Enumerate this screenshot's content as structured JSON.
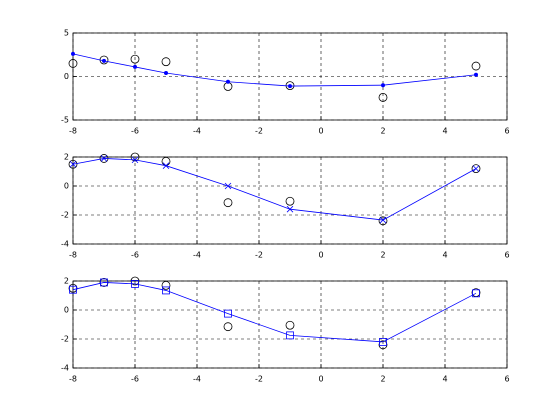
{
  "chart_data": [
    {
      "type": "line",
      "x": [
        -8,
        -7,
        -6,
        -5,
        -3,
        -1,
        2,
        5
      ],
      "xlim": [
        -8,
        6
      ],
      "xticks": [
        -8,
        -6,
        -4,
        -2,
        0,
        2,
        4,
        6
      ],
      "ylim": [
        -5,
        5
      ],
      "yticks": [
        -5,
        0,
        5
      ],
      "grid": true,
      "series": [
        {
          "color": "#000000",
          "marker": "o",
          "line": false,
          "values": [
            1.5,
            1.9,
            2.0,
            1.7,
            -1.15,
            -1.05,
            -2.4,
            1.2
          ]
        },
        {
          "color": "#0000ff",
          "marker": ".",
          "line": true,
          "values": [
            2.6,
            1.8,
            1.1,
            0.4,
            -0.6,
            -1.1,
            -1.0,
            0.2
          ]
        }
      ]
    },
    {
      "type": "line",
      "x": [
        -8,
        -7,
        -6,
        -5,
        -3,
        -1,
        2,
        5
      ],
      "xlim": [
        -8,
        6
      ],
      "xticks": [
        -8,
        -6,
        -4,
        -2,
        0,
        2,
        4,
        6
      ],
      "ylim": [
        -4,
        2
      ],
      "yticks": [
        -4,
        -2,
        0,
        2
      ],
      "grid": true,
      "series": [
        {
          "color": "#000000",
          "marker": "o",
          "line": false,
          "values": [
            1.5,
            1.9,
            2.0,
            1.7,
            -1.15,
            -1.05,
            -2.4,
            1.2
          ]
        },
        {
          "color": "#0000ff",
          "marker": "x",
          "line": true,
          "values": [
            1.5,
            1.9,
            1.8,
            1.4,
            0.0,
            -1.6,
            -2.35,
            1.2
          ]
        }
      ]
    },
    {
      "type": "line",
      "x": [
        -8,
        -7,
        -6,
        -5,
        -3,
        -1,
        2,
        5
      ],
      "xlim": [
        -8,
        6
      ],
      "xticks": [
        -8,
        -6,
        -4,
        -2,
        0,
        2,
        4,
        6
      ],
      "ylim": [
        -4,
        2
      ],
      "yticks": [
        -4,
        -2,
        0,
        2
      ],
      "grid": true,
      "series": [
        {
          "color": "#000000",
          "marker": "o",
          "line": false,
          "values": [
            1.5,
            1.9,
            2.0,
            1.7,
            -1.15,
            -1.05,
            -2.4,
            1.2
          ]
        },
        {
          "color": "#0000ff",
          "marker": "s",
          "line": true,
          "values": [
            1.4,
            1.9,
            1.8,
            1.35,
            -0.25,
            -1.75,
            -2.2,
            1.15
          ]
        }
      ]
    }
  ]
}
